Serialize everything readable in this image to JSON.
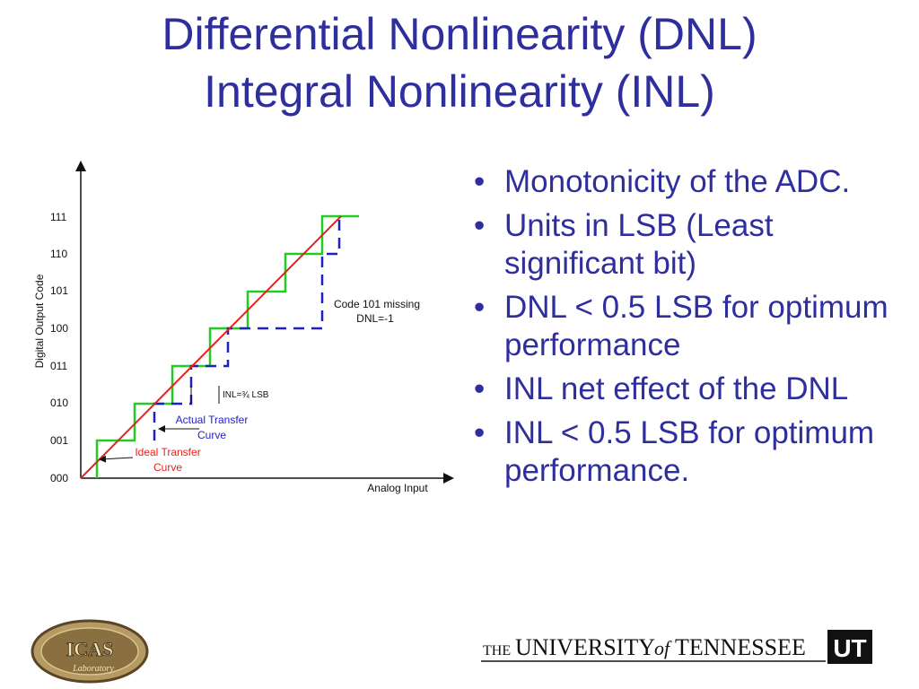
{
  "title_line1": "Differential Nonlinearity (DNL)",
  "title_line2": "Integral Nonlinearity (INL)",
  "diagram": {
    "y_axis_label": "Digital Output Code",
    "x_axis_label": "Analog Input",
    "codes": [
      "000",
      "001",
      "010",
      "011",
      "100",
      "101",
      "110",
      "111"
    ],
    "annotation_missing_line1": "Code 101 missing",
    "annotation_missing_line2": "DNL=-1",
    "annotation_inl": "INL=¾ LSB",
    "actual_curve_line1": "Actual Transfer",
    "actual_curve_line2": "Curve",
    "ideal_curve_line1": "Ideal Transfer",
    "ideal_curve_line2": "Curve",
    "colors": {
      "ideal": "#e8201c",
      "steps": "#22cc22",
      "actual": "#1f1fc4",
      "axis": "#111111"
    }
  },
  "bullets": [
    "Monotonicity of the ADC.",
    "Units in LSB (Least significant bit)",
    "DNL < 0.5 LSB for optimum performance",
    "INL net effect of the DNL",
    "INL < 0.5 LSB for optimum performance."
  ],
  "logo_left_text": "ICAS",
  "logo_left_small": "Laboratory",
  "logo_right_the": "THE",
  "logo_right_university": "UNIVERSITY",
  "logo_right_of": "of",
  "logo_right_tennessee": "TENNESSEE",
  "logo_right_ut": "UT"
}
